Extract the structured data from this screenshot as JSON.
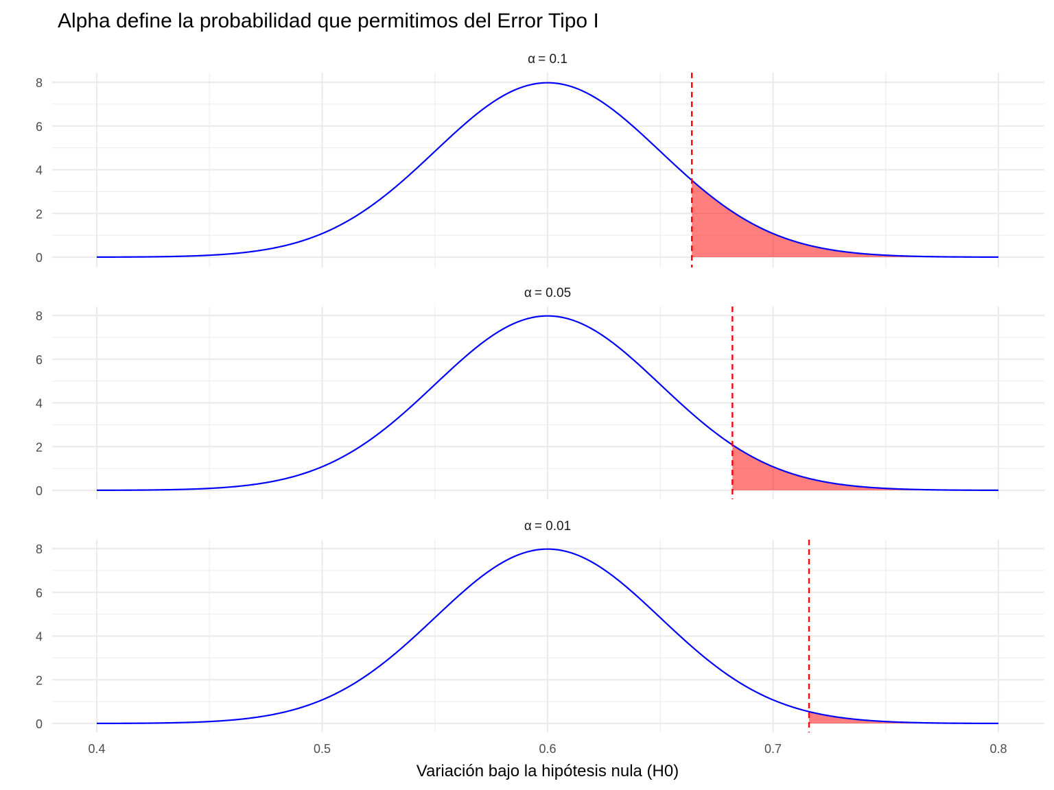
{
  "chart_data": {
    "type": "area",
    "title": "Alpha define la probabilidad que permitimos del Error Tipo I",
    "xlabel": "Variación bajo la hipótesis nula (H0)",
    "ylabel": "",
    "xlim": [
      0.4,
      0.8
    ],
    "ylim": [
      0,
      8
    ],
    "x_ticks": [
      "0.4",
      "0.5",
      "0.6",
      "0.7",
      "0.8"
    ],
    "y_ticks": [
      "0",
      "2",
      "4",
      "6",
      "8"
    ],
    "grid": true,
    "distribution": {
      "mean": 0.6,
      "sd": 0.05
    },
    "colors": {
      "curve": "#0000ff",
      "tail": "#ff0000",
      "critical_line": "#ff0000",
      "grid": "#ebebeb"
    },
    "panels": [
      {
        "alpha_symbol": "α",
        "alpha_value": "= 0.1",
        "critical_value": 0.664
      },
      {
        "alpha_symbol": "α",
        "alpha_value": "= 0.05",
        "critical_value": 0.682
      },
      {
        "alpha_symbol": "α",
        "alpha_value": "= 0.01",
        "critical_value": 0.716
      }
    ]
  }
}
